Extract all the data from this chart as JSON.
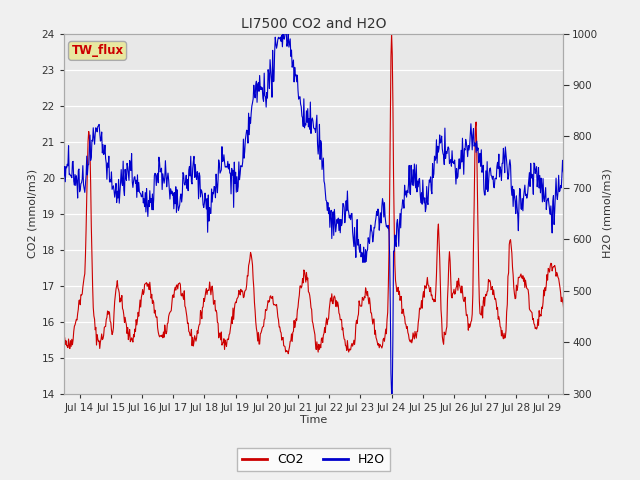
{
  "title": "LI7500 CO2 and H2O",
  "xlabel": "Time",
  "ylabel_left": "CO2 (mmol/m3)",
  "ylabel_right": "H2O (mmol/m3)",
  "ylim_left": [
    14.0,
    24.0
  ],
  "ylim_right": [
    300,
    1000
  ],
  "yticks_left": [
    14.0,
    15.0,
    16.0,
    17.0,
    18.0,
    19.0,
    20.0,
    21.0,
    22.0,
    23.0,
    24.0
  ],
  "yticks_right": [
    300,
    400,
    500,
    600,
    700,
    800,
    900,
    1000
  ],
  "xtick_labels": [
    "Jul 14",
    "Jul 15",
    "Jul 16",
    "Jul 17",
    "Jul 18",
    "Jul 19",
    "Jul 20",
    "Jul 21",
    "Jul 22",
    "Jul 23",
    "Jul 24",
    "Jul 25",
    "Jul 26",
    "Jul 27",
    "Jul 28",
    "Jul 29"
  ],
  "co2_color": "#cc0000",
  "h2o_color": "#0000cc",
  "fig_bg_color": "#f0f0f0",
  "plot_bg_color": "#e8e8e8",
  "grid_color": "#ffffff",
  "label_box_facecolor": "#e8e8a0",
  "label_box_edgecolor": "#aaaaaa",
  "label_box_text": "TW_flux",
  "label_box_text_color": "#cc0000",
  "legend_co2": "CO2",
  "legend_h2o": "H2O",
  "linewidth": 0.8,
  "title_fontsize": 10,
  "axis_fontsize": 8,
  "tick_fontsize": 7.5
}
